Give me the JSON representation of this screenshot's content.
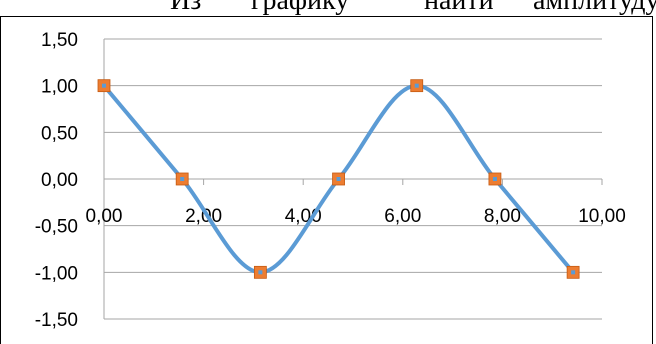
{
  "document": {
    "line_fragments": [
      "Из",
      "графику",
      "найти",
      "амплитуду,"
    ]
  },
  "chart_data": {
    "type": "scatter",
    "title": "",
    "xlabel": "",
    "ylabel": "",
    "xlim": [
      0,
      10
    ],
    "ylim": [
      -1.5,
      1.5
    ],
    "x_ticks": [
      0,
      2,
      4,
      6,
      8,
      10
    ],
    "y_ticks": [
      1.5,
      1.0,
      0.5,
      0.0,
      -0.5,
      -1.0,
      -1.5
    ],
    "x_tick_labels": [
      "0,00",
      "2,00",
      "4,00",
      "6,00",
      "8,00",
      "10,00"
    ],
    "y_tick_labels": [
      "1,50",
      "1,00",
      "0,50",
      "0,00",
      "-0,50",
      "-1,00",
      "-1,50"
    ],
    "grid": "horizontal",
    "series": [
      {
        "x": [
          0.0,
          1.57,
          3.14,
          4.71,
          6.28,
          7.85,
          9.42
        ],
        "y": [
          1.0,
          0.0,
          -1.0,
          0.0,
          1.0,
          0.0,
          -1.0
        ],
        "line": "smooth",
        "marker": "square"
      }
    ],
    "colors": {
      "line": "#5b9bd5",
      "marker": "#ed7d31",
      "grid": "#a6a6a6"
    }
  }
}
